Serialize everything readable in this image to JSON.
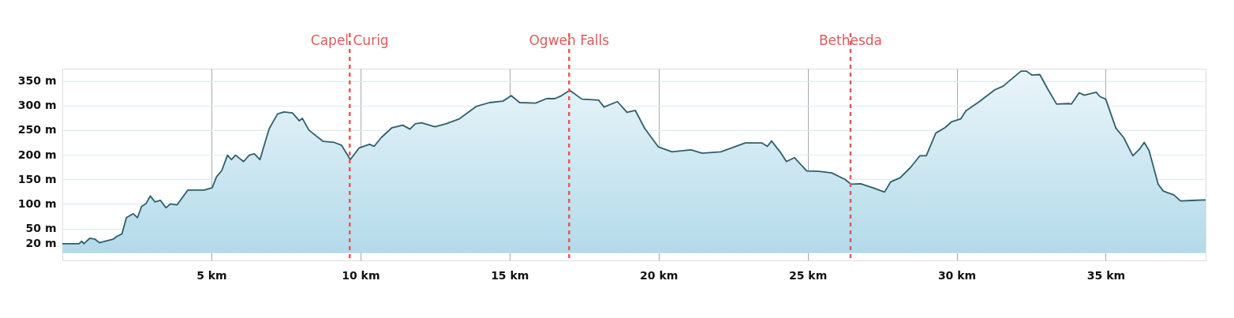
{
  "chart_data": {
    "type": "area",
    "xlim": [
      0,
      38.35
    ],
    "ylim": [
      -15,
      375
    ],
    "xticks": [
      {
        "value": 5,
        "label": "5 km"
      },
      {
        "value": 10,
        "label": "10 km"
      },
      {
        "value": 15,
        "label": "15 km"
      },
      {
        "value": 20,
        "label": "20 km"
      },
      {
        "value": 25,
        "label": "25 km"
      },
      {
        "value": 30,
        "label": "30 km"
      },
      {
        "value": 35,
        "label": "35 km"
      }
    ],
    "yticks": [
      {
        "value": 20,
        "label": "20 m"
      },
      {
        "value": 50,
        "label": "50 m"
      },
      {
        "value": 100,
        "label": "100 m"
      },
      {
        "value": 150,
        "label": "150 m"
      },
      {
        "value": 200,
        "label": "200 m"
      },
      {
        "value": 250,
        "label": "250 m"
      },
      {
        "value": 300,
        "label": "300 m"
      },
      {
        "value": 350,
        "label": "350 m"
      }
    ],
    "grid": true,
    "series": [
      {
        "color": "#2f5f6a",
        "x": [
          0,
          0.56,
          0.65,
          0.72,
          0.92,
          1.1,
          1.24,
          1.7,
          1.83,
          2.0,
          2.15,
          2.38,
          2.52,
          2.66,
          2.8,
          2.95,
          3.11,
          3.29,
          3.48,
          3.62,
          3.85,
          3.98,
          4.21,
          4.76,
          5.03,
          5.17,
          5.35,
          5.54,
          5.67,
          5.81,
          6.08,
          6.27,
          6.44,
          6.63,
          6.8,
          6.94,
          7.22,
          7.44,
          7.72,
          7.95,
          8.05,
          8.27,
          8.75,
          9.12,
          9.37,
          9.66,
          9.96,
          10.3,
          10.46,
          10.7,
          11.06,
          11.42,
          11.66,
          11.84,
          12.05,
          12.5,
          12.87,
          13.32,
          13.88,
          14.33,
          14.78,
          15.06,
          15.34,
          15.88,
          16.24,
          16.52,
          16.71,
          17.02,
          17.43,
          17.99,
          18.17,
          18.62,
          18.94,
          19.22,
          19.54,
          19.99,
          20.45,
          21.09,
          21.46,
          22.09,
          22.91,
          23.46,
          23.65,
          23.79,
          24.11,
          24.29,
          24.56,
          24.97,
          25.38,
          25.81,
          26.25,
          26.46,
          26.78,
          27.22,
          27.58,
          27.79,
          28.1,
          28.45,
          28.77,
          28.98,
          29.3,
          29.61,
          29.83,
          30.14,
          30.31,
          30.76,
          31.28,
          31.55,
          32.16,
          32.34,
          32.52,
          32.79,
          33.05,
          33.35,
          33.75,
          33.85,
          34.11,
          34.28,
          34.68,
          34.81,
          35.0,
          35.34,
          35.6,
          35.91,
          36.13,
          36.29,
          36.45,
          36.76,
          36.93,
          37.29,
          37.51,
          37.91,
          38.35
        ],
        "values": [
          19,
          19,
          24,
          19,
          30,
          28,
          21,
          28,
          34,
          39,
          72,
          80,
          72,
          95,
          100,
          116,
          104,
          107,
          92,
          100,
          98,
          109,
          128,
          128,
          133,
          155,
          168,
          199,
          190,
          199,
          186,
          199,
          202,
          190,
          225,
          253,
          283,
          287,
          285,
          269,
          274,
          250,
          227,
          225,
          219,
          190,
          214,
          221,
          217,
          235,
          255,
          260,
          252,
          263,
          265,
          257,
          263,
          273,
          298,
          306,
          309,
          320,
          306,
          305,
          314,
          314,
          319,
          331,
          313,
          311,
          297,
          308,
          286,
          290,
          253,
          216,
          206,
          210,
          203,
          206,
          224,
          224,
          217,
          228,
          203,
          186,
          194,
          167,
          166,
          163,
          150,
          140,
          141,
          132,
          124,
          145,
          153,
          174,
          198,
          198,
          244,
          255,
          267,
          273,
          289,
          308,
          332,
          339,
          370,
          370,
          362,
          363,
          334,
          303,
          304,
          303,
          326,
          321,
          327,
          318,
          313,
          254,
          235,
          198,
          211,
          225,
          209,
          140,
          126,
          118,
          106,
          107,
          108
        ]
      }
    ],
    "ref_lines": [
      {
        "axis": "x",
        "value": 9.64,
        "label": "Capel Curig",
        "color": "#e05a5a",
        "line_style": "dashed"
      },
      {
        "axis": "x",
        "value": 17.0,
        "label": "Ogwen Falls",
        "color": "#e05a5a",
        "line_style": "dashed"
      },
      {
        "axis": "x",
        "value": 26.44,
        "label": "Bethesda",
        "color": "#e05a5a",
        "line_style": "dashed"
      }
    ]
  }
}
